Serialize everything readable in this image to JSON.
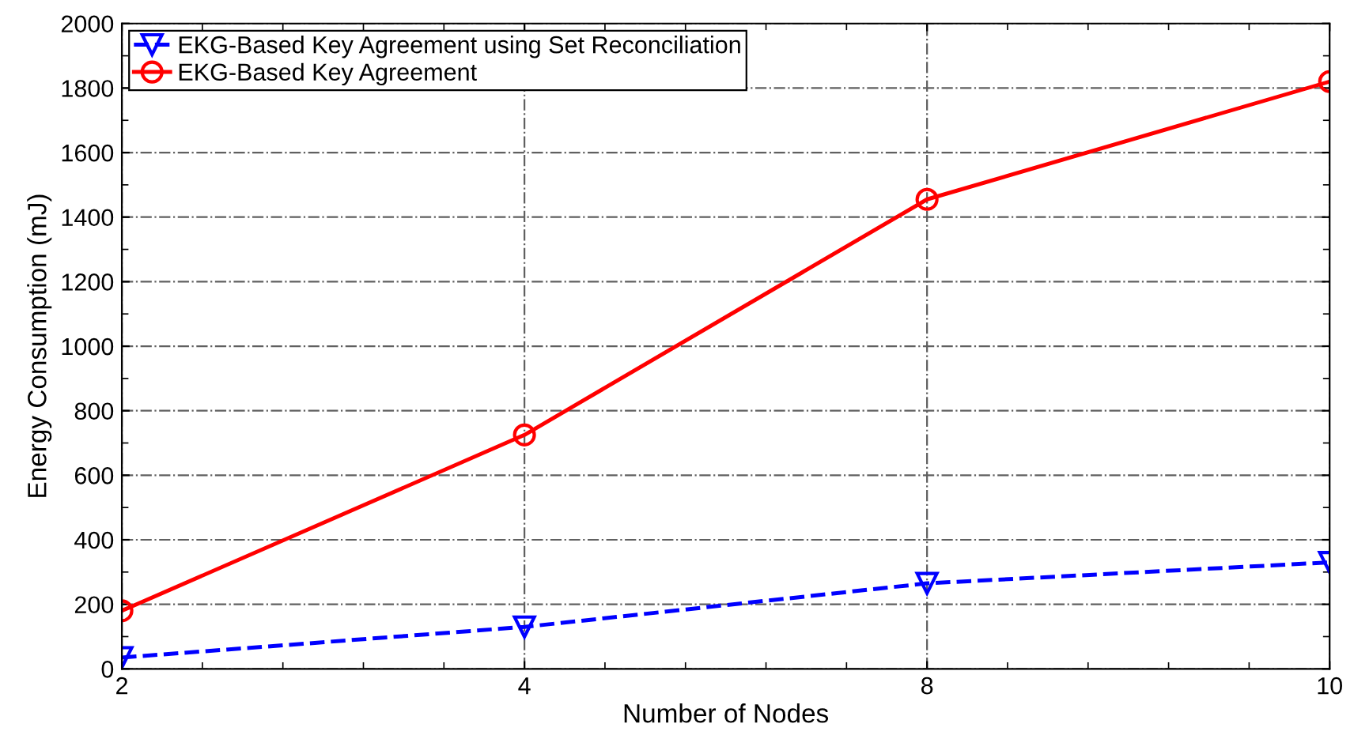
{
  "chart_data": {
    "type": "line",
    "xlabel": "Number of Nodes",
    "ylabel": "Energy Consumption (mJ)",
    "categories": [
      "2",
      "4",
      "8",
      "10"
    ],
    "series": [
      {
        "name": "EKG-Based Key Agreement using Set Reconciliation",
        "color": "#0000ff",
        "values": [
          35,
          130,
          265,
          330
        ],
        "marker": "triangle",
        "line_style": "dashed"
      },
      {
        "name": "EKG-Based Key Agreement",
        "color": "#ff0000",
        "values": [
          180,
          725,
          1455,
          1820
        ],
        "marker": "circle",
        "line_style": "solid"
      }
    ],
    "ylim": [
      0,
      2000
    ],
    "yticks": [
      0,
      200,
      400,
      600,
      800,
      1000,
      1200,
      1400,
      1600,
      1800,
      2000
    ],
    "grid": true,
    "legend": "top left"
  }
}
